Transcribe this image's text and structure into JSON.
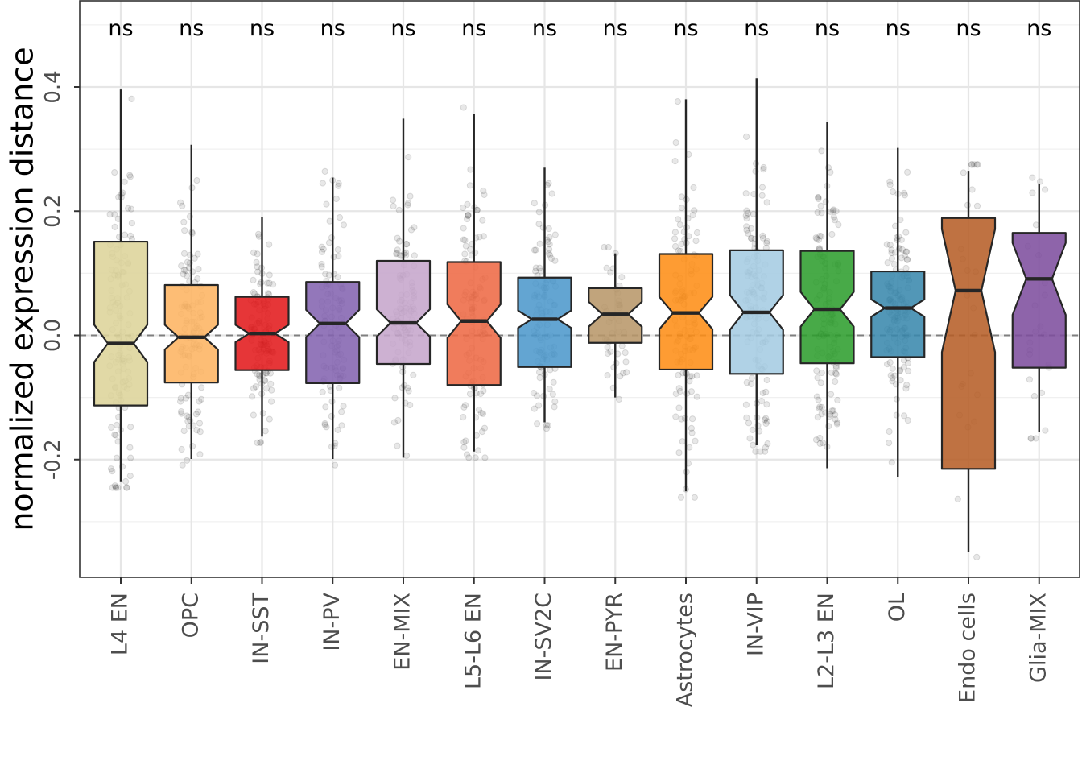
{
  "chart_data": {
    "type": "boxplot",
    "title": "",
    "xlabel": "",
    "ylabel": "normalized expression distance",
    "ylim": [
      -0.39,
      0.535
    ],
    "yticks": [
      -0.2,
      0.0,
      0.2,
      0.4
    ],
    "ytick_labels": [
      "-0.2",
      "0.0",
      "0.2",
      "0.4"
    ],
    "reference_line": 0,
    "significance_label": "ns",
    "categories": [
      "L4 EN",
      "OPC",
      "IN-SST",
      "IN-PV",
      "EN-MIX",
      "L5-L6 EN",
      "IN-SV2C",
      "EN-PYR",
      "Astrocytes",
      "IN-VIP",
      "L2-L3 EN",
      "OL",
      "Endo cells",
      "Glia-MIX"
    ],
    "boxes": [
      {
        "name": "L4 EN",
        "color": "#ddd49a",
        "q1": -0.113,
        "median": -0.013,
        "q3": 0.151,
        "notch_low": -0.043,
        "notch_high": 0.017,
        "whisker_low": -0.235,
        "whisker_high": 0.396,
        "n": 120
      },
      {
        "name": "OPC",
        "color": "#fdb462",
        "q1": -0.076,
        "median": -0.003,
        "q3": 0.081,
        "notch_low": -0.023,
        "notch_high": 0.017,
        "whisker_low": -0.199,
        "whisker_high": 0.307,
        "n": 110
      },
      {
        "name": "IN-SST",
        "color": "#e31a1c",
        "q1": -0.056,
        "median": 0.003,
        "q3": 0.062,
        "notch_low": -0.011,
        "notch_high": 0.017,
        "whisker_low": -0.163,
        "whisker_high": 0.19,
        "n": 110
      },
      {
        "name": "IN-PV",
        "color": "#8464b0",
        "q1": -0.077,
        "median": 0.019,
        "q3": 0.086,
        "notch_low": -0.003,
        "notch_high": 0.041,
        "whisker_low": -0.199,
        "whisker_high": 0.254,
        "n": 100
      },
      {
        "name": "EN-MIX",
        "color": "#c6a6cc",
        "q1": -0.046,
        "median": 0.02,
        "q3": 0.12,
        "notch_low": -0.002,
        "notch_high": 0.042,
        "whisker_low": -0.197,
        "whisker_high": 0.349,
        "n": 100
      },
      {
        "name": "L5-L6 EN",
        "color": "#ee6a46",
        "q1": -0.08,
        "median": 0.023,
        "q3": 0.118,
        "notch_low": -0.004,
        "notch_high": 0.05,
        "whisker_low": -0.187,
        "whisker_high": 0.357,
        "n": 110
      },
      {
        "name": "IN-SV2C",
        "color": "#4d98cc",
        "q1": -0.051,
        "median": 0.026,
        "q3": 0.093,
        "notch_low": 0.012,
        "notch_high": 0.04,
        "whisker_low": -0.14,
        "whisker_high": 0.27,
        "n": 100
      },
      {
        "name": "EN-PYR",
        "color": "#b8976a",
        "q1": -0.012,
        "median": 0.034,
        "q3": 0.076,
        "notch_low": 0.014,
        "notch_high": 0.054,
        "whisker_low": -0.1,
        "whisker_high": 0.132,
        "n": 40
      },
      {
        "name": "Astrocytes",
        "color": "#fe8e17",
        "q1": -0.055,
        "median": 0.036,
        "q3": 0.131,
        "notch_low": 0.01,
        "notch_high": 0.062,
        "whisker_low": -0.251,
        "whisker_high": 0.38,
        "n": 110
      },
      {
        "name": "IN-VIP",
        "color": "#a5cce3",
        "q1": -0.062,
        "median": 0.037,
        "q3": 0.137,
        "notch_low": 0.009,
        "notch_high": 0.065,
        "whisker_low": -0.177,
        "whisker_high": 0.414,
        "n": 120
      },
      {
        "name": "L2-L3 EN",
        "color": "#2f9e2f",
        "q1": -0.045,
        "median": 0.042,
        "q3": 0.136,
        "notch_low": 0.014,
        "notch_high": 0.07,
        "whisker_low": -0.214,
        "whisker_high": 0.344,
        "n": 120
      },
      {
        "name": "OL",
        "color": "#3a89ad",
        "q1": -0.035,
        "median": 0.044,
        "q3": 0.103,
        "notch_low": 0.03,
        "notch_high": 0.058,
        "whisker_low": -0.228,
        "whisker_high": 0.302,
        "n": 130
      },
      {
        "name": "Endo cells",
        "color": "#b65f28",
        "q1": -0.215,
        "median": 0.072,
        "q3": 0.189,
        "notch_low": -0.027,
        "notch_high": 0.171,
        "whisker_low": -0.349,
        "whisker_high": 0.265,
        "n": 25
      },
      {
        "name": "Glia-MIX",
        "color": "#7e4e9e",
        "q1": -0.052,
        "median": 0.091,
        "q3": 0.165,
        "notch_low": 0.033,
        "notch_high": 0.149,
        "whisker_low": -0.156,
        "whisker_high": 0.244,
        "n": 25
      }
    ]
  }
}
